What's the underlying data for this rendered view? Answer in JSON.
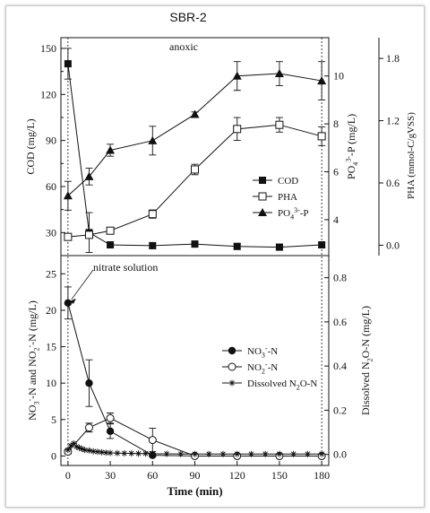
{
  "chart_data": [
    {
      "type": "line",
      "title": "SBR-2",
      "annotation": "anoxic",
      "x": [
        0,
        15,
        30,
        60,
        90,
        120,
        150,
        180
      ],
      "xlim": [
        -5,
        185
      ],
      "axes": {
        "left": {
          "label": "COD (mg/L)",
          "ylim": [
            15,
            157
          ],
          "ticks": [
            30,
            60,
            90,
            120,
            150
          ]
        },
        "right1": {
          "label": "PO43--P (mg/L)",
          "ylim": [
            2.5,
            11.6
          ],
          "ticks": [
            4,
            6,
            8,
            10
          ]
        },
        "right2": {
          "label": "PHA (mmol-C/gVSS)",
          "ylim": [
            -0.1,
            2.0
          ],
          "ticks": [
            "0.0",
            "0.6",
            "1.2",
            "1.8"
          ]
        }
      },
      "series": [
        {
          "name": "COD",
          "axis": "left",
          "marker": "filled-square",
          "values": [
            140,
            30,
            22,
            21.5,
            22.5,
            21,
            20.5,
            22
          ],
          "errors": [
            10,
            13,
            2,
            2,
            2,
            2,
            2,
            1.5
          ]
        },
        {
          "name": "PHA",
          "axis": "right2",
          "marker": "open-square",
          "values": [
            0.08,
            0.1,
            0.14,
            0.3,
            0.73,
            1.12,
            1.16,
            1.05
          ],
          "errors": [
            0.03,
            0.03,
            0.03,
            0.04,
            0.05,
            0.11,
            0.07,
            0.09
          ]
        },
        {
          "name": "PO43--P",
          "axis": "right1",
          "marker": "filled-triangle",
          "values": [
            5.0,
            5.8,
            6.9,
            7.3,
            8.4,
            10.0,
            10.1,
            9.8
          ],
          "errors": [
            0.6,
            0.35,
            0.25,
            0.6,
            0.1,
            0.6,
            0.5,
            0.8
          ]
        }
      ],
      "legend": [
        "COD",
        "PHA",
        "PO43--P"
      ],
      "legend_position": "lower-right"
    },
    {
      "type": "line",
      "annotation": "nitrate solution",
      "x": [
        0,
        15,
        30,
        60,
        90,
        120,
        150,
        180
      ],
      "xlim": [
        -5,
        185
      ],
      "xlabel": "Time (min)",
      "xticks": [
        0,
        30,
        60,
        90,
        120,
        150,
        180
      ],
      "axes": {
        "left": {
          "label": "NO3--N and NO2--N (mg/L)",
          "ylim": [
            -1.3,
            27.5
          ],
          "ticks": [
            0,
            5,
            10,
            15,
            20,
            25
          ]
        },
        "right": {
          "label": "Dissolved N2O-N (mg/L)",
          "ylim": [
            -0.05,
            0.9
          ],
          "ticks": [
            "0.0",
            "0.2",
            "0.4",
            "0.6",
            "0.8"
          ]
        }
      },
      "series": [
        {
          "name": "NO3--N",
          "axis": "left",
          "marker": "filled-circle",
          "x": [
            0,
            15,
            30,
            60,
            90,
            120,
            150,
            180
          ],
          "values": [
            21.0,
            10.0,
            3.4,
            0.1,
            0.0,
            0.0,
            0.0,
            0.0
          ],
          "errors": [
            2.2,
            3.2,
            1.0,
            0.2,
            0,
            0,
            0,
            0
          ]
        },
        {
          "name": "NO2--N",
          "axis": "left",
          "marker": "open-circle",
          "x": [
            0,
            15,
            30,
            60,
            90,
            120,
            150,
            180
          ],
          "values": [
            0.6,
            3.9,
            5.2,
            2.2,
            0.0,
            0.0,
            0.0,
            0.0
          ],
          "errors": [
            0.3,
            0.6,
            0.7,
            1.6,
            0,
            0,
            0,
            0
          ]
        },
        {
          "name": "Dissolved N2O-N",
          "axis": "right",
          "marker": "asterisk",
          "x": [
            0,
            2,
            4,
            6,
            8,
            10,
            12,
            15,
            18,
            21,
            24,
            27,
            30,
            35,
            40,
            45,
            50,
            55,
            60,
            70,
            80,
            90,
            100,
            110,
            120,
            130,
            140,
            150,
            160,
            170,
            180
          ],
          "values": [
            0.02,
            0.04,
            0.05,
            0.035,
            0.03,
            0.025,
            0.02,
            0.018,
            0.014,
            0.012,
            0.01,
            0.008,
            0.007,
            0.006,
            0.005,
            0.005,
            0.004,
            0.004,
            0.003,
            0.003,
            0.002,
            0.002,
            0.002,
            0.002,
            0.002,
            0.002,
            0.002,
            0.002,
            0.002,
            0.002,
            0.002
          ]
        }
      ],
      "legend": [
        "NO3--N",
        "NO2--N",
        "Dissolved N2O-N"
      ],
      "legend_position": "center-right"
    }
  ]
}
